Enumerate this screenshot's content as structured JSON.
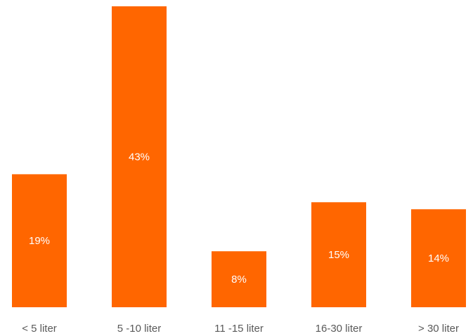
{
  "chart_data": {
    "type": "bar",
    "categories": [
      "< 5 liter",
      "5 -10 liter",
      "11 -15 liter",
      "16-30 liter",
      "> 30 liter"
    ],
    "values": [
      19,
      43,
      8,
      15,
      14
    ],
    "data_labels": [
      "19%",
      "43%",
      "8%",
      "15%",
      "14%"
    ],
    "unit": "%",
    "ylim": [
      0,
      43
    ],
    "grid": false,
    "legend": "none",
    "bar_color": "#ff6600",
    "label_color": "#ffffff",
    "category_label_color": "#595959"
  }
}
